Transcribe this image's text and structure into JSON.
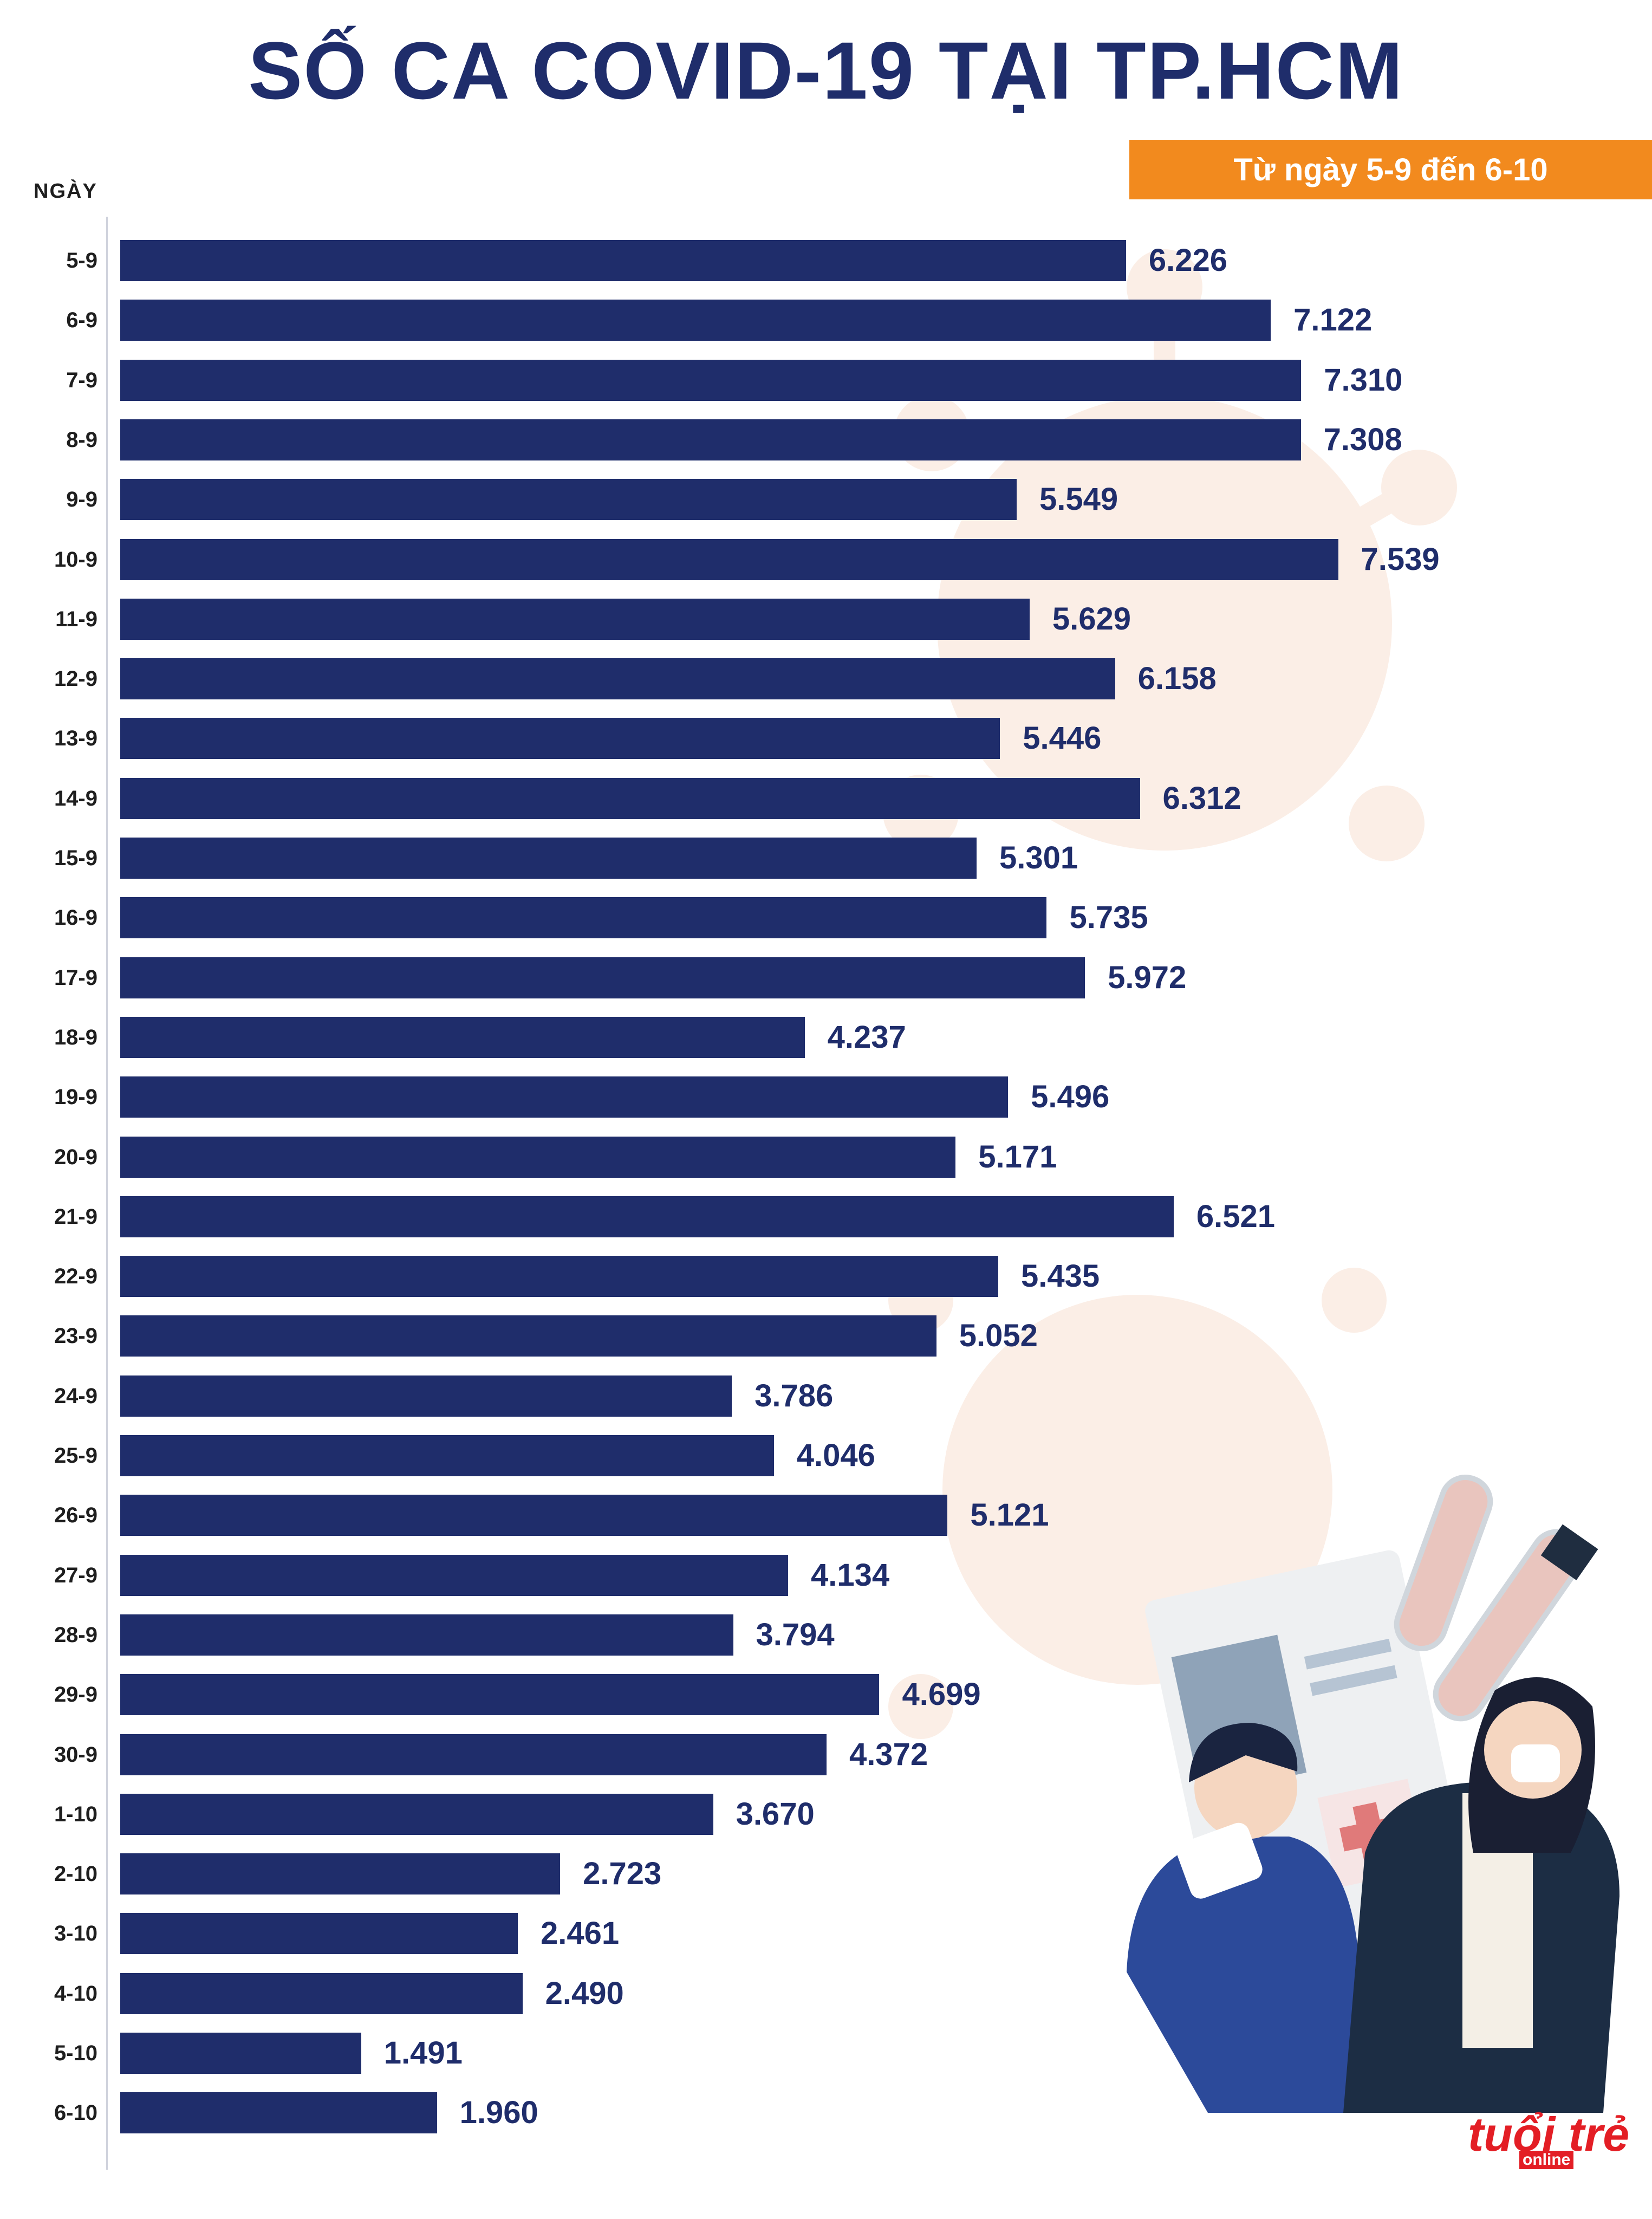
{
  "title": "SỐ CA COVID-19 TẠI TP.HCM",
  "subtitle": "Từ ngày 5-9 đến 6-10",
  "colors": {
    "bar": "#1f2d6b",
    "title": "#1f2d6b",
    "badge": "#f28a1e",
    "logo": "#e31e25",
    "deco": "#fbeee6"
  },
  "logo": {
    "main": "tuổi trẻ",
    "sub": "online"
  },
  "chart_data": {
    "type": "bar",
    "orientation": "horizontal",
    "title": "SỐ CA COVID-19 TẠI TP.HCM",
    "subtitle": "Từ ngày 5-9 đến 6-10",
    "ylabel": "NGÀY",
    "xlim": [
      0,
      8000
    ],
    "categories": [
      "5-9",
      "6-9",
      "7-9",
      "8-9",
      "9-9",
      "10-9",
      "11-9",
      "12-9",
      "13-9",
      "14-9",
      "15-9",
      "16-9",
      "17-9",
      "18-9",
      "19-9",
      "20-9",
      "21-9",
      "22-9",
      "23-9",
      "24-9",
      "25-9",
      "26-9",
      "27-9",
      "28-9",
      "29-9",
      "30-9",
      "1-10",
      "2-10",
      "3-10",
      "4-10",
      "5-10",
      "6-10"
    ],
    "values": [
      6226,
      7122,
      7310,
      7308,
      5549,
      7539,
      5629,
      6158,
      5446,
      6312,
      5301,
      5735,
      5972,
      4237,
      5496,
      5171,
      6521,
      5435,
      5052,
      3786,
      4046,
      5121,
      4134,
      3794,
      4699,
      4372,
      3670,
      2723,
      2461,
      2490,
      1491,
      1960
    ],
    "value_labels": [
      "6.226",
      "7.122",
      "7.310",
      "7.308",
      "5.549",
      "7.539",
      "5.629",
      "6.158",
      "5.446",
      "6.312",
      "5.301",
      "5.735",
      "5.972",
      "4.237",
      "5.496",
      "5.171",
      "6.521",
      "5.435",
      "5.052",
      "3.786",
      "4.046",
      "5.121",
      "4.134",
      "3.794",
      "4.699",
      "4.372",
      "3.670",
      "2.723",
      "2.461",
      "2.490",
      "1.491",
      "1.960"
    ]
  }
}
